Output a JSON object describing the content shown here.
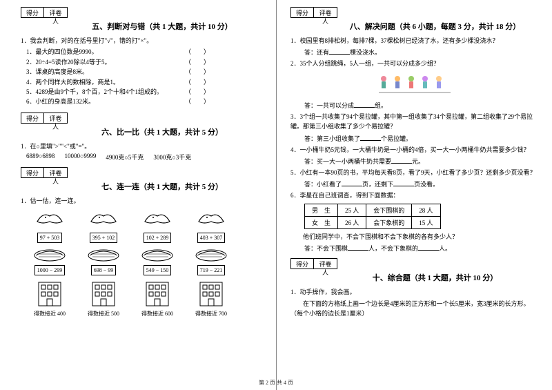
{
  "left": {
    "scoreLabels": {
      "s": "得分",
      "r": "评卷人"
    },
    "sec5": {
      "title": "五、判断对与错（共 1 大题，共计 10 分）",
      "lead": "1．我会判断，对的在括号里打\"√\"，错的打\"×\"。",
      "items": [
        "1．最大的四位数是9990。",
        "2．20÷4=5读作20除以4等于5。",
        "3．课桌的高度是8米。",
        "4．两个同样大的数相除，商是1。",
        "5．4289是由9个千，8个百，2个十和4个1组成的。",
        "6．小红的身高是132米。"
      ]
    },
    "sec6": {
      "title": "六、比一比（共 1 大题，共计 5 分）",
      "lead": "1．在○里填\">\"\"<\"或\"=\"。",
      "row": [
        "6889○6898",
        "10000○9999",
        "4900克○5千克",
        "3000克○3千克"
      ]
    },
    "sec7": {
      "title": "七、连一连（共 1 大题，共计 5 分）",
      "lead": "1．估一估，连一连。",
      "birds": [
        "97 + 503",
        "395 + 102",
        "102 + 289",
        "403 + 307"
      ],
      "nests": [
        "1000 − 299",
        "698 − 99",
        "549 − 150",
        "719 − 221"
      ],
      "buildings": [
        "得数接近 400",
        "得数接近 500",
        "得数接近 600",
        "得数接近 700"
      ]
    }
  },
  "right": {
    "sec8": {
      "title": "八、解决问题（共 6 小题，每题 3 分，共计 18 分）",
      "q1": "1．校园里有8排松树，每排7棵，37棵松树已经浇了水，还有多少棵没浇水？",
      "a1_pre": "答：还有",
      "a1_suf": "棵没浇水。",
      "q2": "2．35个人分组跳绳，5人一组，一共可以分成多少组？",
      "a2_pre": "答：一共可以分成",
      "a2_suf": "组。",
      "q3a": "3．3个组一共收集了94个易拉罐，其中第一组收集了34个易拉罐，第二组收集了29个易拉罐。那第三小组收集了多少个易拉罐？",
      "a3_pre": "答：第三小组收集了",
      "a3_suf": "个易拉罐。",
      "q4": "4．一小桶牛奶5元钱，一大桶牛奶是一小桶的4倍，买一大一小两桶牛奶共需要多少钱？",
      "a4_pre": "答：买一大一小两桶牛奶共需要",
      "a4_suf": "元。",
      "q5": "5．小红有一本90页的书，平均每天看8页，看了9天，小红看了多少页？还剩多少页没看？",
      "a5_pre": "答：小红看了",
      "a5_mid": "页，还剩下",
      "a5_suf": "页没看。",
      "q6": "6．李星在自己班调查，得到下面数据：",
      "table": {
        "r1": [
          "男　生",
          "25 人",
          "会下围棋的",
          "28 人"
        ],
        "r2": [
          "女　生",
          "26 人",
          "会下象棋的",
          "15 人"
        ]
      },
      "q6b": "　　他们班同学中，不会下围棋和不会下象棋的各有多少人？",
      "a6_pre": "答：不会下围棋",
      "a6_mid": "人，不会下象棋的",
      "a6_suf": "人。"
    },
    "sec10": {
      "title": "十、综合题（共 1 大题，共计 10 分）",
      "q1": "1．动手操作，我会画。",
      "q1b": "　　在下面的方格纸上画一个边长是4厘米的正方形和一个长5厘米，宽3厘米的长方形。（每个小格的边长是1厘米）"
    }
  },
  "footer": "第 2 页 共 4 页"
}
